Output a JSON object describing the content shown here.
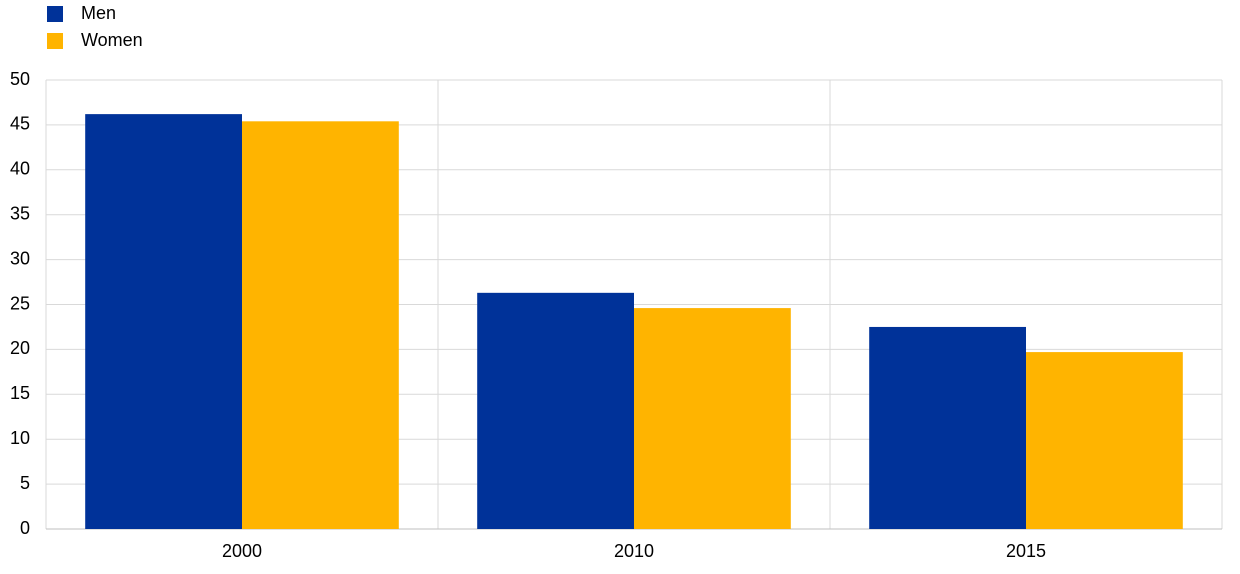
{
  "chart_data": {
    "type": "bar",
    "categories": [
      "2000",
      "2010",
      "2015"
    ],
    "series": [
      {
        "name": "Men",
        "color": "#003299",
        "values": [
          46.2,
          26.3,
          22.5
        ]
      },
      {
        "name": "Women",
        "color": "#ffb400",
        "values": [
          45.4,
          24.6,
          19.7
        ]
      }
    ],
    "ylim": [
      0,
      50
    ],
    "yticks": [
      0,
      5,
      10,
      15,
      20,
      25,
      30,
      35,
      40,
      45,
      50
    ],
    "grid": true,
    "legend": "top-left"
  }
}
